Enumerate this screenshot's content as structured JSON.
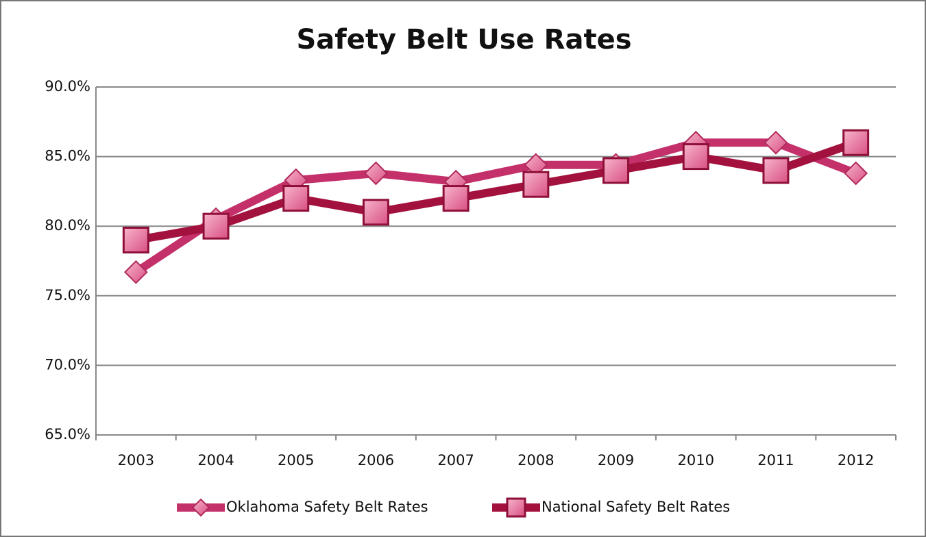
{
  "chart_data": {
    "type": "line",
    "title": "Safety Belt Use Rates",
    "categories": [
      "2003",
      "2004",
      "2005",
      "2006",
      "2007",
      "2008",
      "2009",
      "2010",
      "2011",
      "2012"
    ],
    "series": [
      {
        "name": "Oklahoma Safety Belt Rates",
        "color": "#c4306a",
        "marker": "diamond",
        "values": [
          76.7,
          80.5,
          83.3,
          83.8,
          83.2,
          84.4,
          84.4,
          86.0,
          86.0,
          83.8
        ]
      },
      {
        "name": "National Safety Belt Rates",
        "color": "#a3123f",
        "marker": "square",
        "values": [
          79,
          80,
          82,
          81,
          82,
          83,
          84,
          85,
          84,
          86
        ]
      }
    ],
    "ylim": [
      65,
      90
    ],
    "yticks": [
      {
        "value": 65,
        "label": "65.0%"
      },
      {
        "value": 70,
        "label": "70.0%"
      },
      {
        "value": 75,
        "label": "75.0%"
      },
      {
        "value": 80,
        "label": "80.0%"
      },
      {
        "value": 85,
        "label": "85.0%"
      },
      {
        "value": 90,
        "label": "90.0%"
      }
    ],
    "grid": true,
    "legend": "bottom"
  }
}
